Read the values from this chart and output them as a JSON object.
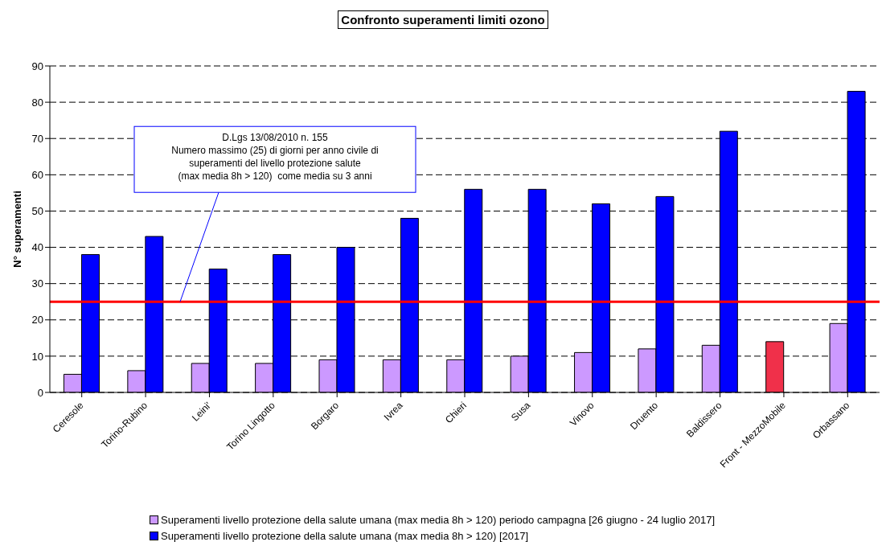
{
  "chart_data": {
    "type": "bar",
    "title": "Confronto superamenti limiti ozono",
    "ylabel": "N° superamenti",
    "categories": [
      "Ceresole",
      "Torino-Rubino",
      "Leini'",
      "Torino Lingotto",
      "Borgaro",
      "Ivrea",
      "Chieri",
      "Susa",
      "Vinovo",
      "Druento",
      "Baldissero",
      "Front - MezzoMobile",
      "Orbassano"
    ],
    "series": [
      {
        "name": "Superamenti livello protezione della salute umana (max media 8h > 120) periodo campagna [26 giugno - 24 luglio 2017]",
        "color": "#cc99ff",
        "colors": [
          "#cc99ff",
          "#cc99ff",
          "#cc99ff",
          "#cc99ff",
          "#cc99ff",
          "#cc99ff",
          "#cc99ff",
          "#cc99ff",
          "#cc99ff",
          "#cc99ff",
          "#cc99ff",
          "#f0304a",
          "#cc99ff"
        ],
        "values": [
          5,
          6,
          8,
          8,
          9,
          9,
          9,
          10,
          11,
          12,
          13,
          14,
          19
        ]
      },
      {
        "name": "Superamenti livello protezione della salute umana (max media 8h > 120) [2017]",
        "color": "#0000ff",
        "values": [
          38,
          43,
          34,
          38,
          40,
          48,
          56,
          56,
          52,
          54,
          72,
          null,
          83
        ]
      }
    ],
    "ylim": [
      0,
      90
    ],
    "yticks": [
      0,
      10,
      20,
      30,
      40,
      50,
      60,
      70,
      80,
      90
    ],
    "grid": "y",
    "legend": "bottom",
    "ref_lines": [
      {
        "axis": "y",
        "value": 25,
        "color": "#ff0000",
        "label": "D.Lgs 13/08/2010 n. 155\nNumero massimo (25) di giorni per anno civile di\nsuperamenti del livello protezione salute\n(max media 8h > 120)  come media su 3 anni"
      }
    ]
  }
}
